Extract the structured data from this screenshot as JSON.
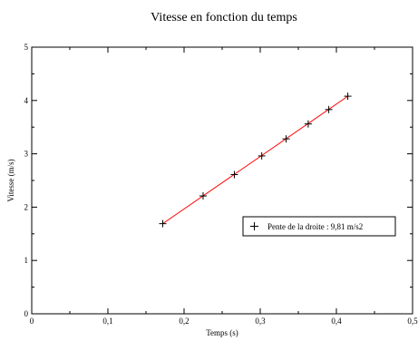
{
  "chart_data": {
    "type": "scatter",
    "title": "Vitesse en fonction du temps",
    "xlabel": "Temps (s)",
    "ylabel": "Vitesse (m/s)",
    "xlim": [
      0,
      0.5
    ],
    "ylim": [
      0,
      5
    ],
    "xticks": [
      "0",
      "0,1",
      "0,2",
      "0,3",
      "0,4",
      "0,5"
    ],
    "yticks": [
      "0",
      "1",
      "2",
      "3",
      "4",
      "5"
    ],
    "grid": false,
    "legend_position": "right",
    "series": [
      {
        "name": "Pente de la droite : 9,81 m/s2",
        "marker": "+",
        "color": "#000000",
        "x": [
          0.172,
          0.225,
          0.266,
          0.302,
          0.334,
          0.363,
          0.39,
          0.415
        ],
        "y": [
          1.69,
          2.21,
          2.61,
          2.96,
          3.28,
          3.56,
          3.83,
          4.08
        ]
      }
    ],
    "fit_line": {
      "color": "#ff0000",
      "x": [
        0.172,
        0.415
      ],
      "y": [
        1.69,
        4.08
      ]
    }
  }
}
